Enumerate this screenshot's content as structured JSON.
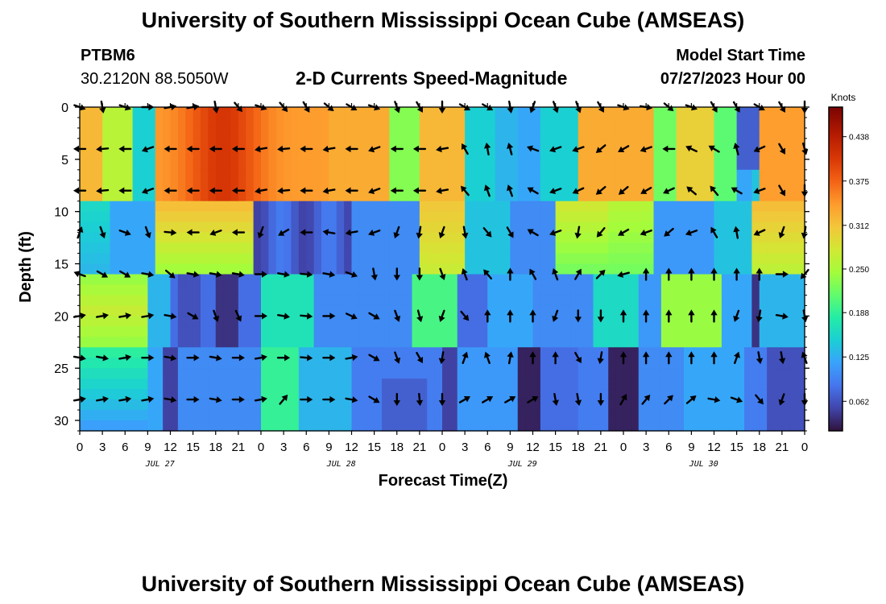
{
  "page": {
    "title_top": "University of Southern Mississippi Ocean Cube (AMSEAS)",
    "title_bottom": "University of Southern Mississippi Ocean Cube (AMSEAS)"
  },
  "header": {
    "station": "PTBM6",
    "coords": "30.2120N  88.5050W",
    "model_label": "Model Start Time",
    "model_time": "07/27/2023 Hour 00"
  },
  "colors": {
    "arrow": "#000000",
    "frame": "#000000",
    "background": "#ffffff"
  },
  "chart_data": {
    "type": "heatmap",
    "title": "2-D Currents Speed-Magnitude",
    "xlabel": "Forecast Time(Z)",
    "ylabel": "Depth (ft)",
    "x_hours_range": [
      0,
      96
    ],
    "y_depth_range": [
      0,
      31
    ],
    "x_tick_labels": [
      "0",
      "3",
      "6",
      "9",
      "12",
      "15",
      "18",
      "21",
      "0",
      "3",
      "6",
      "9",
      "12",
      "15",
      "18",
      "21",
      "0",
      "3",
      "6",
      "9",
      "12",
      "15",
      "18",
      "21",
      "0",
      "3",
      "6",
      "9",
      "12",
      "15",
      "18",
      "21",
      "0"
    ],
    "date_labels": [
      {
        "label": "JUL 27",
        "hour": 10
      },
      {
        "label": "JUL 28",
        "hour": 34
      },
      {
        "label": "JUL 29",
        "hour": 58
      },
      {
        "label": "JUL 30",
        "hour": 82
      }
    ],
    "y_ticks": [
      "0",
      "5",
      "10",
      "15",
      "20",
      "25",
      "30"
    ],
    "colorbar": {
      "unit": "Knots",
      "min": 0.02,
      "max": 0.48,
      "ticks": [
        "0.438",
        "0.375",
        "0.312",
        "0.250",
        "0.188",
        "0.125",
        "0.062"
      ]
    },
    "arrow_hours": [
      0,
      3,
      6,
      9,
      12,
      15,
      18,
      21,
      24,
      27,
      30,
      33,
      36,
      39,
      42,
      45,
      48,
      51,
      54,
      57,
      60,
      63,
      66,
      69,
      72,
      75,
      78,
      81,
      84,
      87,
      90,
      93,
      96
    ],
    "arrow_depths": [
      0,
      4,
      8,
      12,
      16,
      20,
      24,
      28
    ],
    "arrow_direction_deg": [
      [
        110,
        170,
        110,
        90,
        80,
        80,
        170,
        140,
        110,
        140,
        150,
        130,
        120,
        110,
        160,
        150,
        180,
        120,
        120,
        170,
        200,
        160,
        160,
        150,
        110,
        100,
        130,
        110,
        150,
        150,
        120,
        150,
        180
      ],
      [
        270,
        265,
        270,
        250,
        270,
        270,
        270,
        270,
        260,
        265,
        270,
        260,
        270,
        250,
        270,
        270,
        260,
        330,
        350,
        345,
        290,
        250,
        250,
        230,
        240,
        250,
        270,
        295,
        300,
        345,
        245,
        150,
        165
      ],
      [
        270,
        265,
        270,
        250,
        270,
        270,
        270,
        270,
        260,
        265,
        270,
        260,
        270,
        250,
        270,
        270,
        260,
        320,
        340,
        340,
        300,
        250,
        245,
        230,
        230,
        240,
        245,
        310,
        320,
        300,
        250,
        150,
        180
      ],
      [
        20,
        160,
        110,
        160,
        95,
        270,
        250,
        270,
        200,
        240,
        270,
        280,
        260,
        250,
        200,
        190,
        200,
        170,
        140,
        150,
        300,
        250,
        190,
        220,
        240,
        250,
        230,
        250,
        330,
        350,
        245,
        200,
        190
      ],
      [
        290,
        120,
        120,
        100,
        130,
        100,
        100,
        100,
        90,
        100,
        95,
        100,
        110,
        170,
        180,
        180,
        160,
        340,
        320,
        0,
        330,
        340,
        30,
        45,
        255,
        0,
        0,
        0,
        0,
        0,
        360,
        90,
        220
      ],
      [
        80,
        80,
        80,
        80,
        100,
        120,
        160,
        155,
        90,
        100,
        95,
        90,
        115,
        120,
        160,
        165,
        200,
        140,
        0,
        0,
        0,
        200,
        180,
        180,
        0,
        0,
        0,
        0,
        0,
        200,
        190,
        100,
        170
      ],
      [
        100,
        100,
        80,
        90,
        100,
        90,
        100,
        90,
        80,
        90,
        95,
        90,
        80,
        120,
        160,
        150,
        190,
        20,
        340,
        10,
        0,
        0,
        150,
        190,
        0,
        0,
        0,
        0,
        0,
        20,
        170,
        170,
        340
      ],
      [
        80,
        80,
        80,
        80,
        100,
        90,
        100,
        90,
        80,
        40,
        90,
        90,
        100,
        120,
        180,
        175,
        180,
        60,
        60,
        60,
        60,
        170,
        170,
        180,
        30,
        40,
        45,
        50,
        100,
        110,
        140,
        200,
        180
      ]
    ]
  }
}
